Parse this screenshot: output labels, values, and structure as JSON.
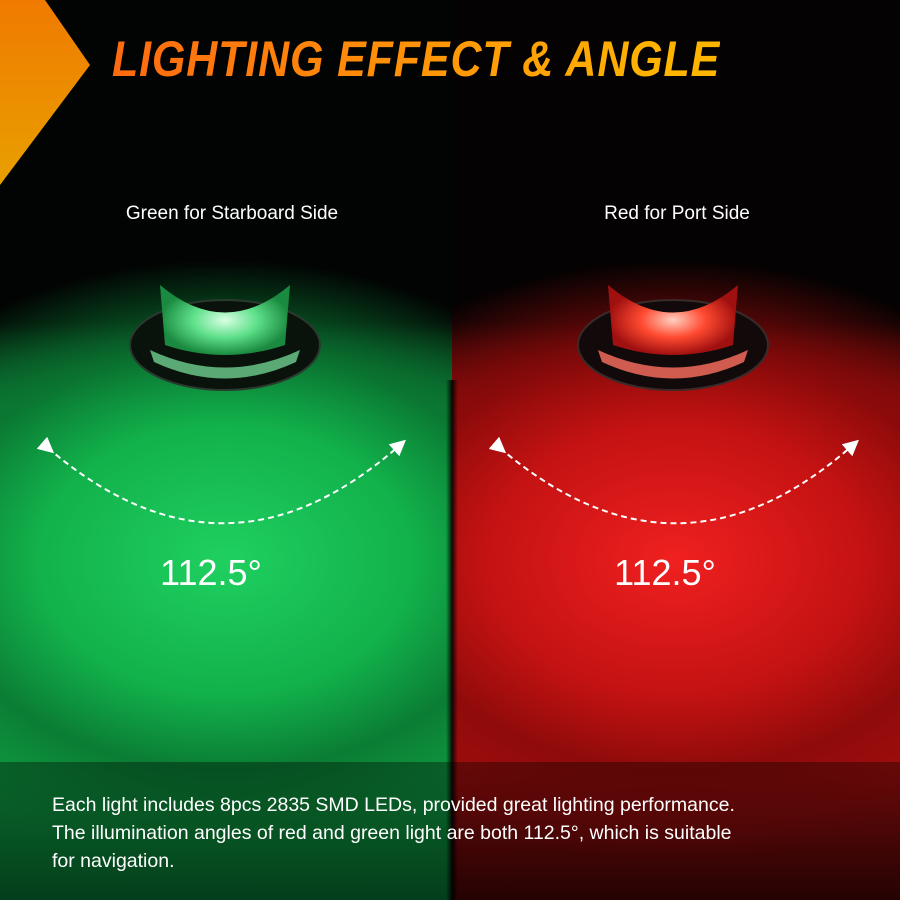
{
  "header": {
    "title": "LIGHTING EFFECT & ANGLE"
  },
  "green_side": {
    "label": "Green for Starboard Side",
    "angle": "112.5°",
    "color": "#14b04c"
  },
  "red_side": {
    "label": "Red for Port Side",
    "angle": "112.5°",
    "color": "#c51414"
  },
  "caption": {
    "lines": [
      "Each light includes 8pcs 2835 SMD LEDs, provided great lighting performance.",
      "The illumination angles of red and green light are both 112.5°, which is suitable",
      "for navigation."
    ]
  },
  "accent": "#ff8c00"
}
